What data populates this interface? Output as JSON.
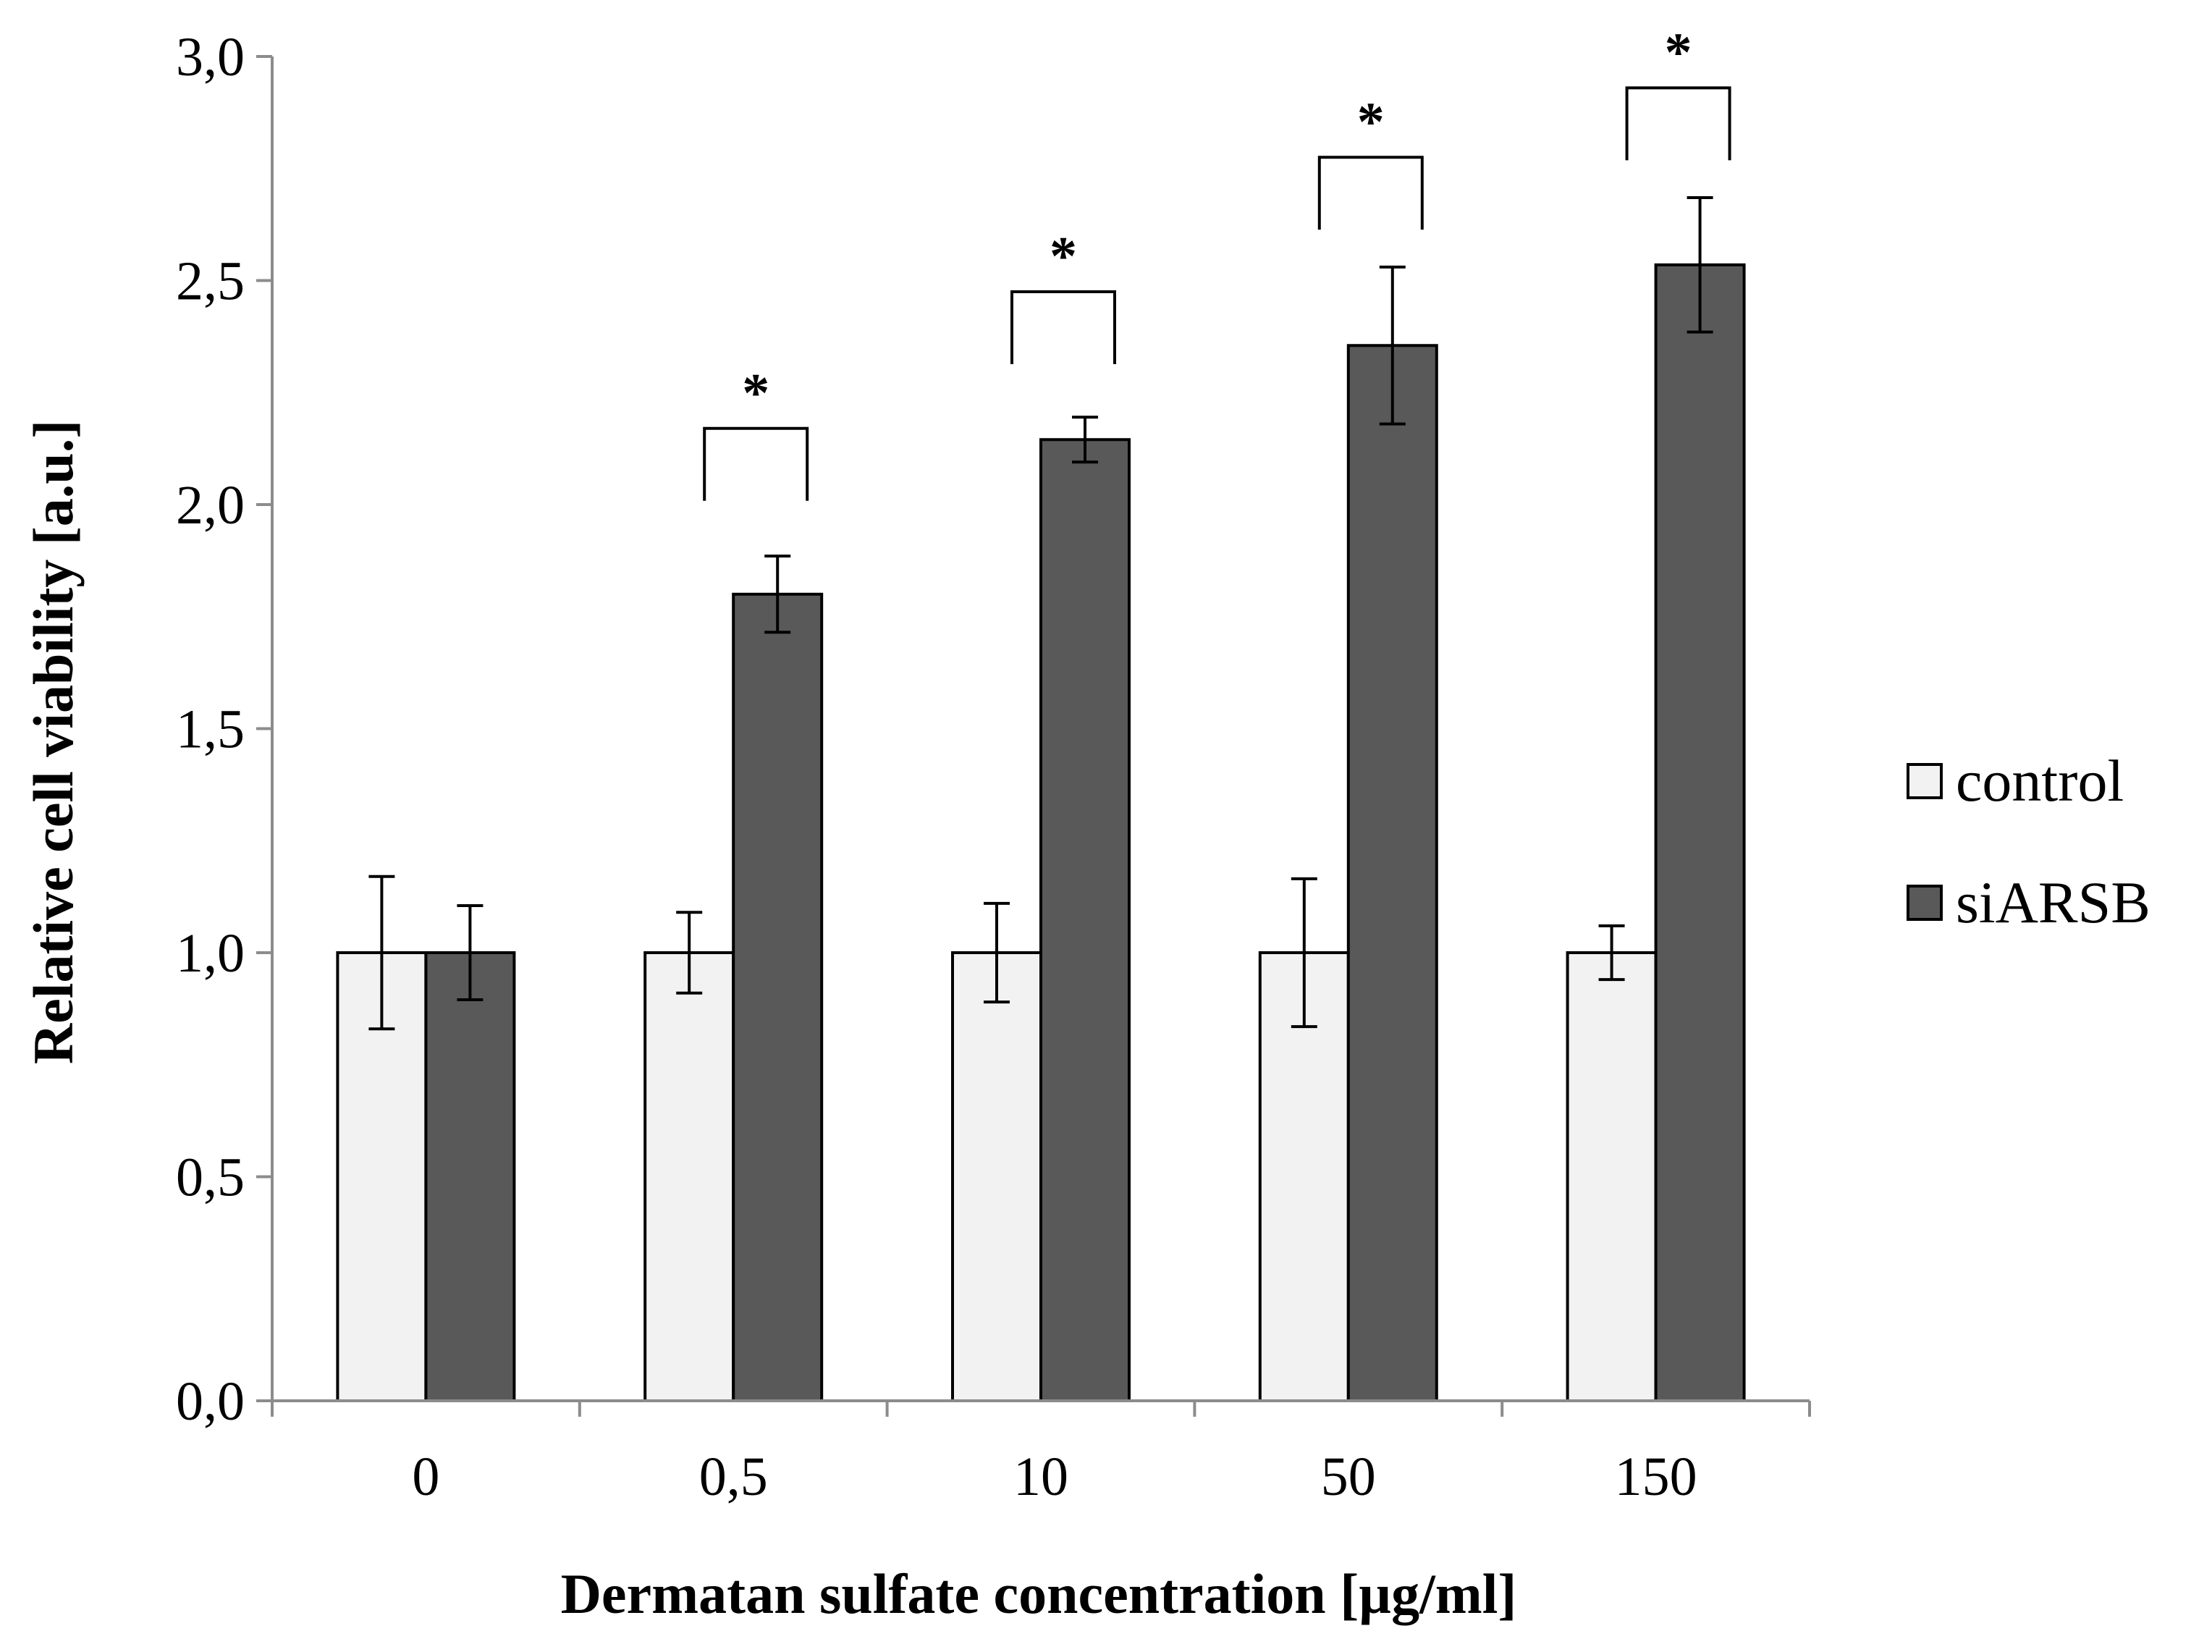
{
  "chart_data": {
    "type": "bar",
    "title": "",
    "xlabel": "Dermatan sulfate concentration [µg/ml]",
    "ylabel": "Relative cell viability [a.u.]",
    "ylim": [
      0,
      3.0
    ],
    "y_ticks": [
      "0,0",
      "0,5",
      "1,0",
      "1,5",
      "2,0",
      "2,5",
      "3,0"
    ],
    "y_tick_values": [
      0,
      0.5,
      1.0,
      1.5,
      2.0,
      2.5,
      3.0
    ],
    "categories": [
      "0",
      "0,5",
      "10",
      "50",
      "150"
    ],
    "grid": false,
    "legend_position": "right",
    "series": [
      {
        "name": "control",
        "color": "#f2f2f2",
        "values": [
          1.0,
          1.0,
          1.0,
          1.0,
          1.0
        ],
        "errors": [
          0.17,
          0.09,
          0.11,
          0.165,
          0.06
        ]
      },
      {
        "name": "siARSB",
        "color": "#595959",
        "values": [
          1.0,
          1.8,
          2.145,
          2.355,
          2.535
        ],
        "errors": [
          0.105,
          0.085,
          0.05,
          0.175,
          0.15
        ]
      }
    ],
    "significance": [
      {
        "category_index": 1,
        "label": "*",
        "bracket_y": 2.17
      },
      {
        "category_index": 2,
        "label": "*",
        "bracket_y": 2.475
      },
      {
        "category_index": 3,
        "label": "*",
        "bracket_y": 2.775
      },
      {
        "category_index": 4,
        "label": "*",
        "bracket_y": 2.93
      }
    ]
  }
}
